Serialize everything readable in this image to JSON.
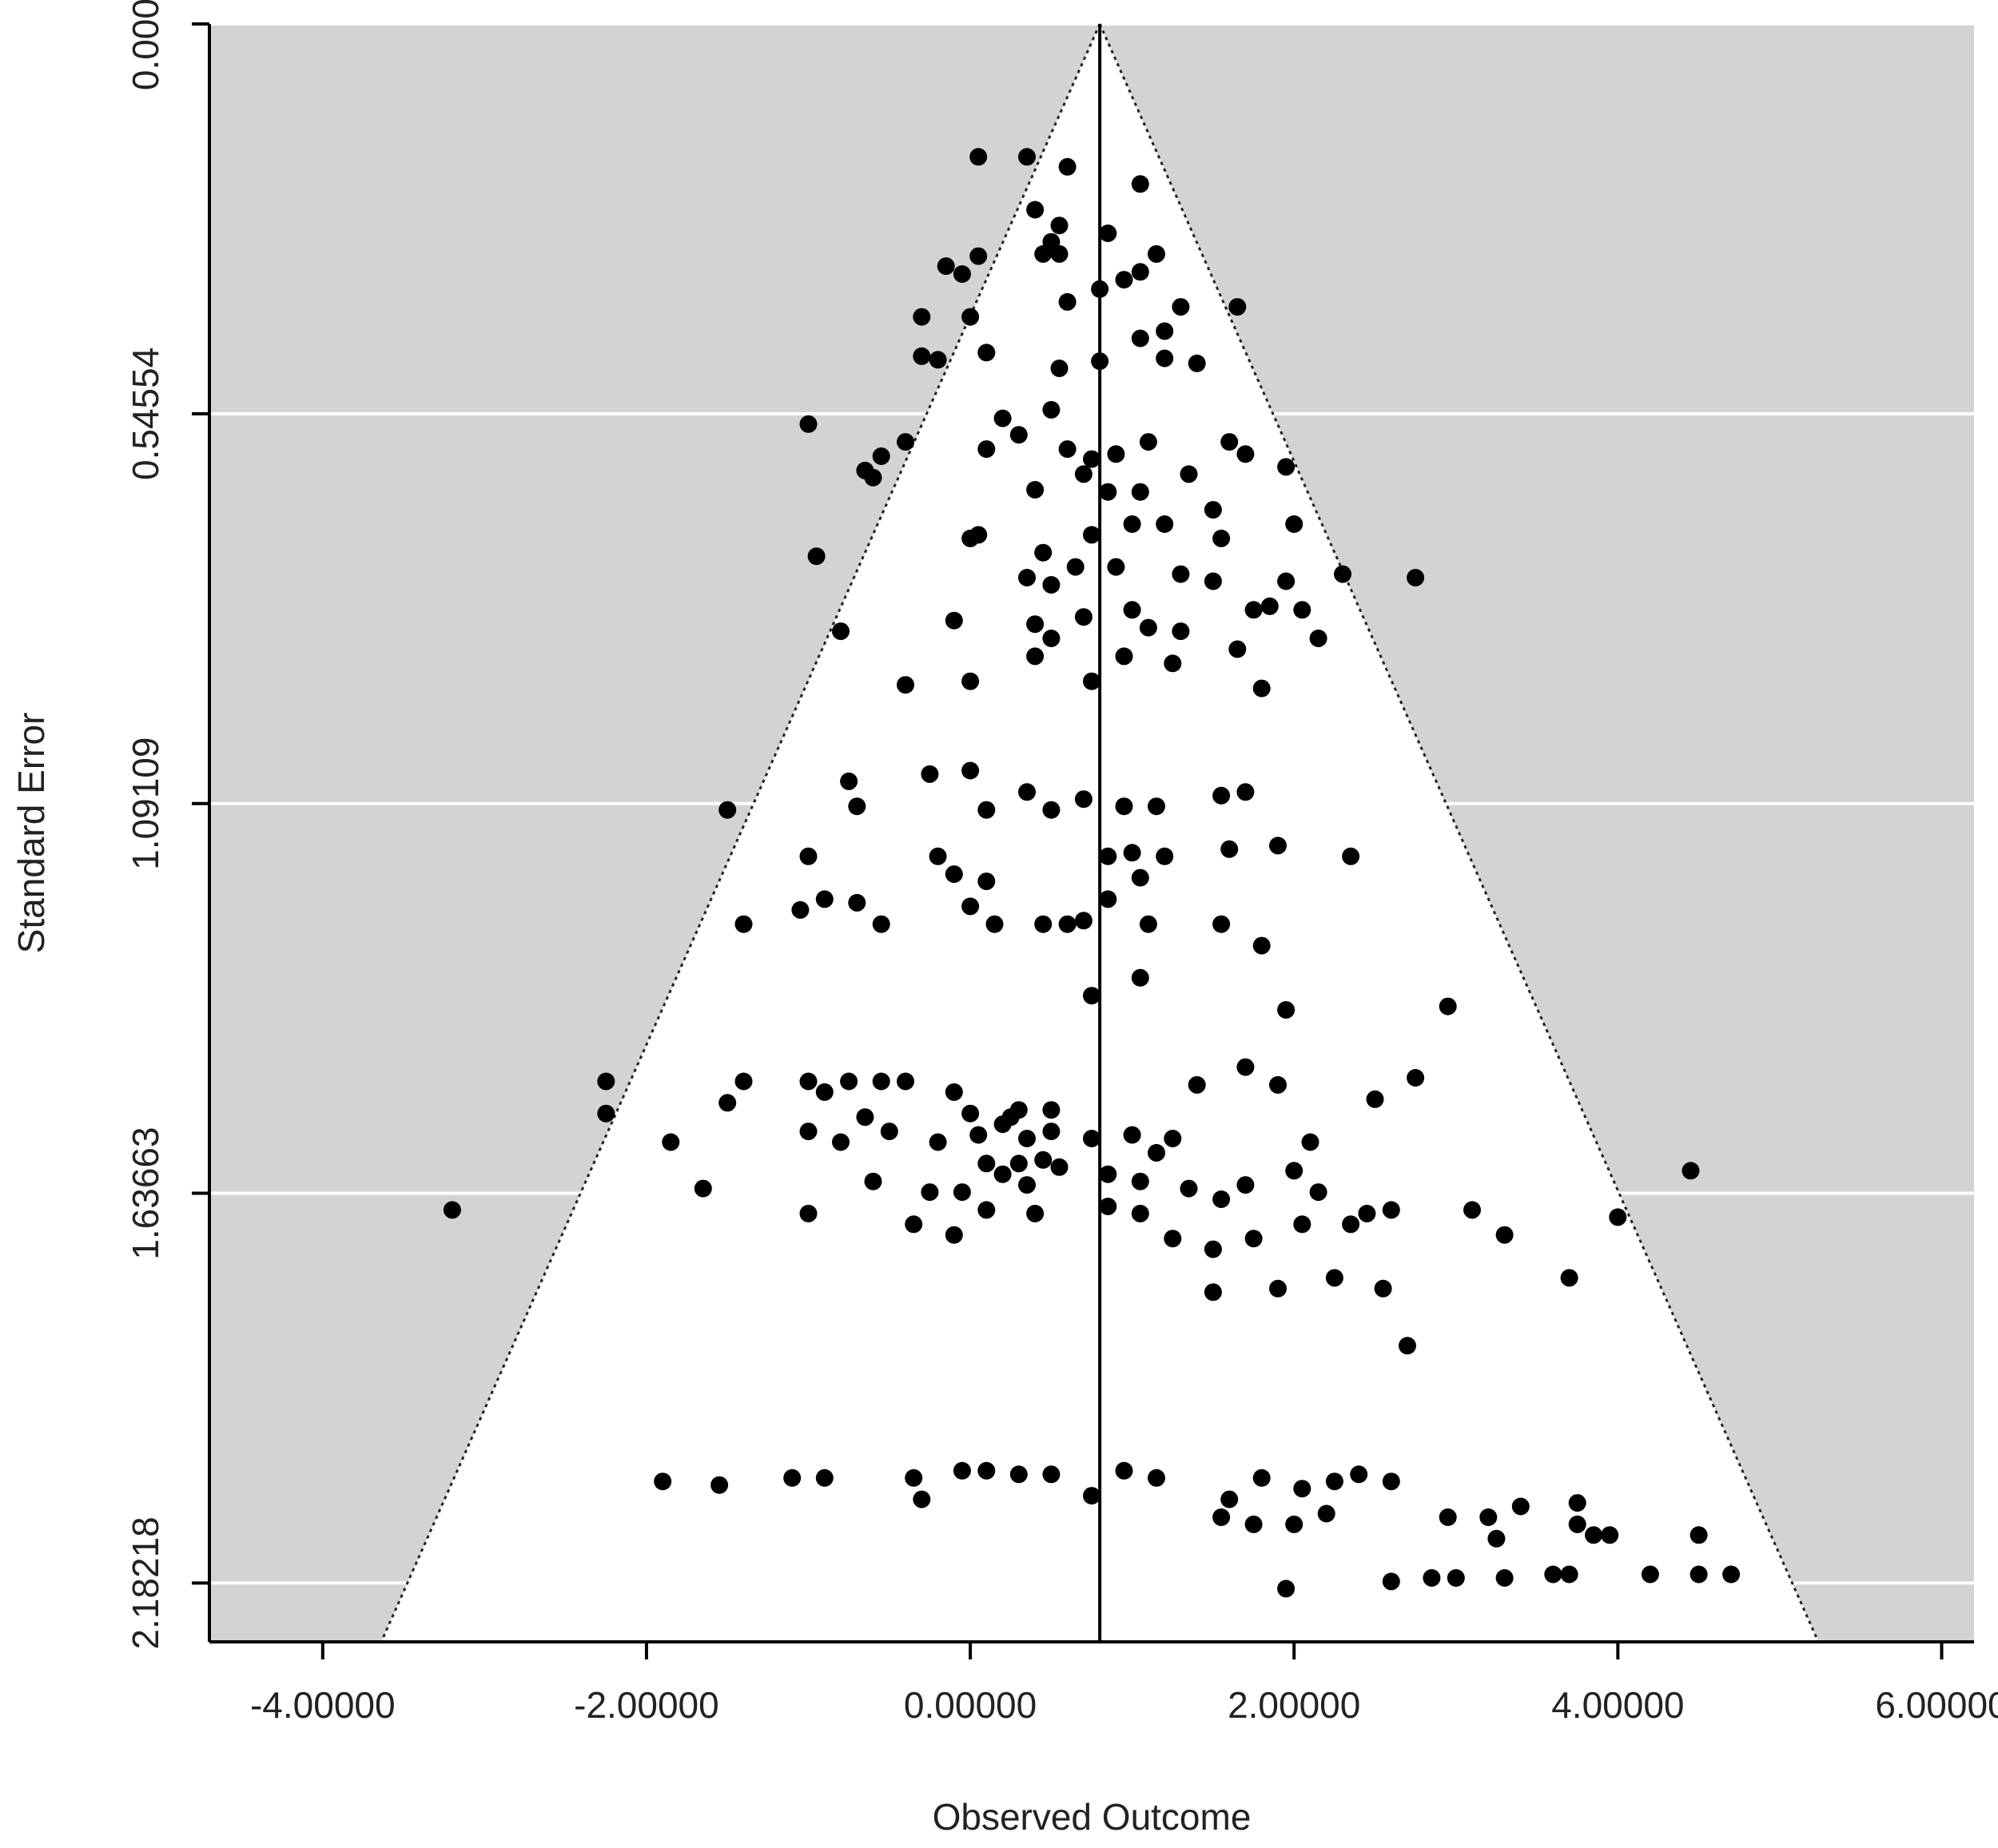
{
  "chart_data": {
    "type": "scatter",
    "title": "",
    "xlabel": "Observed Outcome",
    "ylabel": "Standard Error",
    "xlim": [
      -4.7,
      6.2
    ],
    "ylim": [
      0.0,
      2.2645
    ],
    "y_reversed": true,
    "x_ticks": [
      -4,
      -2,
      0,
      2,
      4,
      6
    ],
    "x_tick_labels": [
      "-4.00000",
      "-2.00000",
      "0.00000",
      "2.00000",
      "4.00000",
      "6.00000"
    ],
    "y_ticks": [
      0,
      0.54554,
      1.09109,
      1.63663,
      2.18218
    ],
    "y_tick_labels": [
      "0.00000",
      "0.54554",
      "1.09109",
      "1.63663",
      "2.18218"
    ],
    "grid": "horizontal",
    "center_estimate": 0.8,
    "funnel_z": 1.96,
    "colors": {
      "panel": "#d3d3d3",
      "funnel": "#ffffff",
      "points": "#000000",
      "gridline": "#ffffff"
    },
    "points": [
      [
        0.05,
        0.186
      ],
      [
        0.35,
        0.186
      ],
      [
        0.6,
        0.2
      ],
      [
        1.05,
        0.224
      ],
      [
        0.4,
        0.26
      ],
      [
        0.55,
        0.282
      ],
      [
        0.5,
        0.305
      ],
      [
        0.85,
        0.293
      ],
      [
        -0.15,
        0.339
      ],
      [
        -0.05,
        0.35
      ],
      [
        0.05,
        0.325
      ],
      [
        0.45,
        0.322
      ],
      [
        0.55,
        0.322
      ],
      [
        1.05,
        0.347
      ],
      [
        1.15,
        0.322
      ],
      [
        0.8,
        0.371
      ],
      [
        0.6,
        0.389
      ],
      [
        0.95,
        0.358
      ],
      [
        -0.3,
        0.41
      ],
      [
        0.0,
        0.41
      ],
      [
        1.3,
        0.396
      ],
      [
        1.65,
        0.396
      ],
      [
        1.05,
        0.44
      ],
      [
        1.2,
        0.43
      ],
      [
        -0.3,
        0.465
      ],
      [
        0.1,
        0.46
      ],
      [
        0.55,
        0.482
      ],
      [
        0.8,
        0.472
      ],
      [
        1.2,
        0.468
      ],
      [
        1.4,
        0.475
      ],
      [
        -0.2,
        0.47
      ],
      [
        0.2,
        0.552
      ],
      [
        0.3,
        0.575
      ],
      [
        0.5,
        0.54
      ],
      [
        -1.0,
        0.56
      ],
      [
        -0.4,
        0.585
      ],
      [
        0.1,
        0.595
      ],
      [
        0.6,
        0.595
      ],
      [
        0.75,
        0.609
      ],
      [
        0.9,
        0.602
      ],
      [
        1.1,
        0.585
      ],
      [
        1.35,
        0.63
      ],
      [
        1.6,
        0.585
      ],
      [
        1.7,
        0.602
      ],
      [
        1.95,
        0.62
      ],
      [
        -0.55,
        0.605
      ],
      [
        -0.65,
        0.625
      ],
      [
        -0.6,
        0.635
      ],
      [
        0.7,
        0.63
      ],
      [
        0.85,
        0.655
      ],
      [
        1.05,
        0.655
      ],
      [
        0.4,
        0.652
      ],
      [
        1.5,
        0.68
      ],
      [
        1.2,
        0.7
      ],
      [
        1.55,
        0.72
      ],
      [
        2.0,
        0.7
      ],
      [
        -0.95,
        0.745
      ],
      [
        0.0,
        0.72
      ],
      [
        0.05,
        0.715
      ],
      [
        0.45,
        0.74
      ],
      [
        0.75,
        0.715
      ],
      [
        0.35,
        0.775
      ],
      [
        0.5,
        0.785
      ],
      [
        0.65,
        0.76
      ],
      [
        0.9,
        0.76
      ],
      [
        1.0,
        0.7
      ],
      [
        1.3,
        0.77
      ],
      [
        1.95,
        0.78
      ],
      [
        2.3,
        0.77
      ],
      [
        2.75,
        0.775
      ],
      [
        -0.8,
        0.85
      ],
      [
        -0.4,
        0.925
      ],
      [
        -0.1,
        0.835
      ],
      [
        0.4,
        0.84
      ],
      [
        0.5,
        0.86
      ],
      [
        0.7,
        0.83
      ],
      [
        1.0,
        0.82
      ],
      [
        1.1,
        0.845
      ],
      [
        1.3,
        0.85
      ],
      [
        1.5,
        0.78
      ],
      [
        1.75,
        0.82
      ],
      [
        1.85,
        0.815
      ],
      [
        2.05,
        0.82
      ],
      [
        2.15,
        0.86
      ],
      [
        0.0,
        0.92
      ],
      [
        0.4,
        0.885
      ],
      [
        0.75,
        0.92
      ],
      [
        0.95,
        0.885
      ],
      [
        1.25,
        0.895
      ],
      [
        1.65,
        0.875
      ],
      [
        1.8,
        0.93
      ],
      [
        -1.5,
        1.1
      ],
      [
        -0.75,
        1.06
      ],
      [
        -0.7,
        1.095
      ],
      [
        -0.25,
        1.05
      ],
      [
        0.0,
        1.045
      ],
      [
        0.1,
        1.1
      ],
      [
        0.35,
        1.075
      ],
      [
        0.7,
        1.085
      ],
      [
        0.95,
        1.095
      ],
      [
        1.15,
        1.095
      ],
      [
        1.55,
        1.08
      ],
      [
        1.7,
        1.075
      ],
      [
        -1.0,
        1.165
      ],
      [
        -0.2,
        1.165
      ],
      [
        -0.1,
        1.19
      ],
      [
        0.1,
        1.2
      ],
      [
        0.5,
        1.1
      ],
      [
        0.85,
        1.165
      ],
      [
        1.0,
        1.16
      ],
      [
        1.05,
        1.195
      ],
      [
        1.2,
        1.165
      ],
      [
        1.6,
        1.155
      ],
      [
        1.9,
        1.15
      ],
      [
        2.35,
        1.165
      ],
      [
        -1.4,
        1.26
      ],
      [
        -1.05,
        1.24
      ],
      [
        -0.9,
        1.225
      ],
      [
        -0.7,
        1.23
      ],
      [
        -0.55,
        1.26
      ],
      [
        0.0,
        1.235
      ],
      [
        0.15,
        1.26
      ],
      [
        0.45,
        1.26
      ],
      [
        0.6,
        1.26
      ],
      [
        0.7,
        1.255
      ],
      [
        0.85,
        1.225
      ],
      [
        1.1,
        1.26
      ],
      [
        1.55,
        1.26
      ],
      [
        1.8,
        1.29
      ],
      [
        0.75,
        1.36
      ],
      [
        1.05,
        1.335
      ],
      [
        1.95,
        1.38
      ],
      [
        2.95,
        1.375
      ],
      [
        -2.25,
        1.48
      ],
      [
        -1.4,
        1.48
      ],
      [
        -1.0,
        1.48
      ],
      [
        -0.9,
        1.495
      ],
      [
        -0.75,
        1.48
      ],
      [
        -0.55,
        1.48
      ],
      [
        -0.4,
        1.48
      ],
      [
        -0.1,
        1.495
      ],
      [
        0.0,
        1.525
      ],
      [
        0.25,
        1.53
      ],
      [
        0.3,
        1.52
      ],
      [
        0.5,
        1.52
      ],
      [
        -2.25,
        1.525
      ],
      [
        -1.5,
        1.51
      ],
      [
        -1.0,
        1.55
      ],
      [
        -0.8,
        1.565
      ],
      [
        -0.65,
        1.53
      ],
      [
        -0.5,
        1.55
      ],
      [
        -0.2,
        1.565
      ],
      [
        0.05,
        1.555
      ],
      [
        0.2,
        1.54
      ],
      [
        0.35,
        1.56
      ],
      [
        0.5,
        1.55
      ],
      [
        -1.85,
        1.565
      ],
      [
        -1.65,
        1.63
      ],
      [
        0.1,
        1.595
      ],
      [
        0.3,
        1.595
      ],
      [
        0.45,
        1.59
      ],
      [
        0.75,
        1.56
      ],
      [
        1.0,
        1.555
      ],
      [
        1.25,
        1.56
      ],
      [
        1.4,
        1.485
      ],
      [
        1.7,
        1.46
      ],
      [
        1.9,
        1.485
      ],
      [
        2.1,
        1.565
      ],
      [
        2.5,
        1.505
      ],
      [
        2.75,
        1.475
      ],
      [
        -0.6,
        1.62
      ],
      [
        -0.25,
        1.635
      ],
      [
        -0.05,
        1.635
      ],
      [
        0.2,
        1.61
      ],
      [
        0.35,
        1.625
      ],
      [
        0.55,
        1.6
      ],
      [
        0.85,
        1.61
      ],
      [
        1.05,
        1.62
      ],
      [
        1.15,
        1.58
      ],
      [
        1.35,
        1.63
      ],
      [
        1.55,
        1.645
      ],
      [
        1.7,
        1.625
      ],
      [
        2.0,
        1.605
      ],
      [
        2.15,
        1.635
      ],
      [
        2.45,
        1.665
      ],
      [
        -3.2,
        1.66
      ],
      [
        -1.0,
        1.665
      ],
      [
        -0.35,
        1.68
      ],
      [
        -0.1,
        1.695
      ],
      [
        0.1,
        1.66
      ],
      [
        0.4,
        1.665
      ],
      [
        0.85,
        1.655
      ],
      [
        1.05,
        1.665
      ],
      [
        1.25,
        1.7
      ],
      [
        1.5,
        1.715
      ],
      [
        1.75,
        1.7
      ],
      [
        2.05,
        1.68
      ],
      [
        2.35,
        1.68
      ],
      [
        2.6,
        1.66
      ],
      [
        3.1,
        1.66
      ],
      [
        3.3,
        1.695
      ],
      [
        4.0,
        1.67
      ],
      [
        4.45,
        1.605
      ],
      [
        1.5,
        1.775
      ],
      [
        1.9,
        1.77
      ],
      [
        2.25,
        1.755
      ],
      [
        2.55,
        1.77
      ],
      [
        3.7,
        1.755
      ],
      [
        2.7,
        1.85
      ],
      [
        -1.9,
        2.04
      ],
      [
        -1.55,
        2.045
      ],
      [
        -1.1,
        2.035
      ],
      [
        -0.9,
        2.035
      ],
      [
        -0.35,
        2.035
      ],
      [
        -0.3,
        2.065
      ],
      [
        -0.05,
        2.025
      ],
      [
        0.1,
        2.025
      ],
      [
        0.3,
        2.03
      ],
      [
        0.5,
        2.03
      ],
      [
        0.75,
        2.06
      ],
      [
        0.95,
        2.025
      ],
      [
        1.15,
        2.035
      ],
      [
        1.6,
        2.065
      ],
      [
        1.8,
        2.035
      ],
      [
        2.05,
        2.05
      ],
      [
        2.25,
        2.04
      ],
      [
        2.4,
        2.03
      ],
      [
        2.6,
        2.04
      ],
      [
        1.55,
        2.09
      ],
      [
        1.75,
        2.1
      ],
      [
        2.0,
        2.1
      ],
      [
        2.2,
        2.085
      ],
      [
        2.95,
        2.09
      ],
      [
        3.2,
        2.09
      ],
      [
        3.4,
        2.075
      ],
      [
        3.75,
        2.07
      ],
      [
        3.75,
        2.1
      ],
      [
        3.85,
        2.115
      ],
      [
        3.95,
        2.115
      ],
      [
        4.5,
        2.115
      ],
      [
        3.25,
        2.12
      ],
      [
        2.6,
        2.18
      ],
      [
        2.85,
        2.175
      ],
      [
        3.0,
        2.175
      ],
      [
        3.3,
        2.175
      ],
      [
        3.6,
        2.17
      ],
      [
        3.7,
        2.17
      ],
      [
        4.2,
        2.17
      ],
      [
        4.5,
        2.17
      ],
      [
        4.7,
        2.17
      ],
      [
        1.95,
        2.19
      ]
    ]
  }
}
